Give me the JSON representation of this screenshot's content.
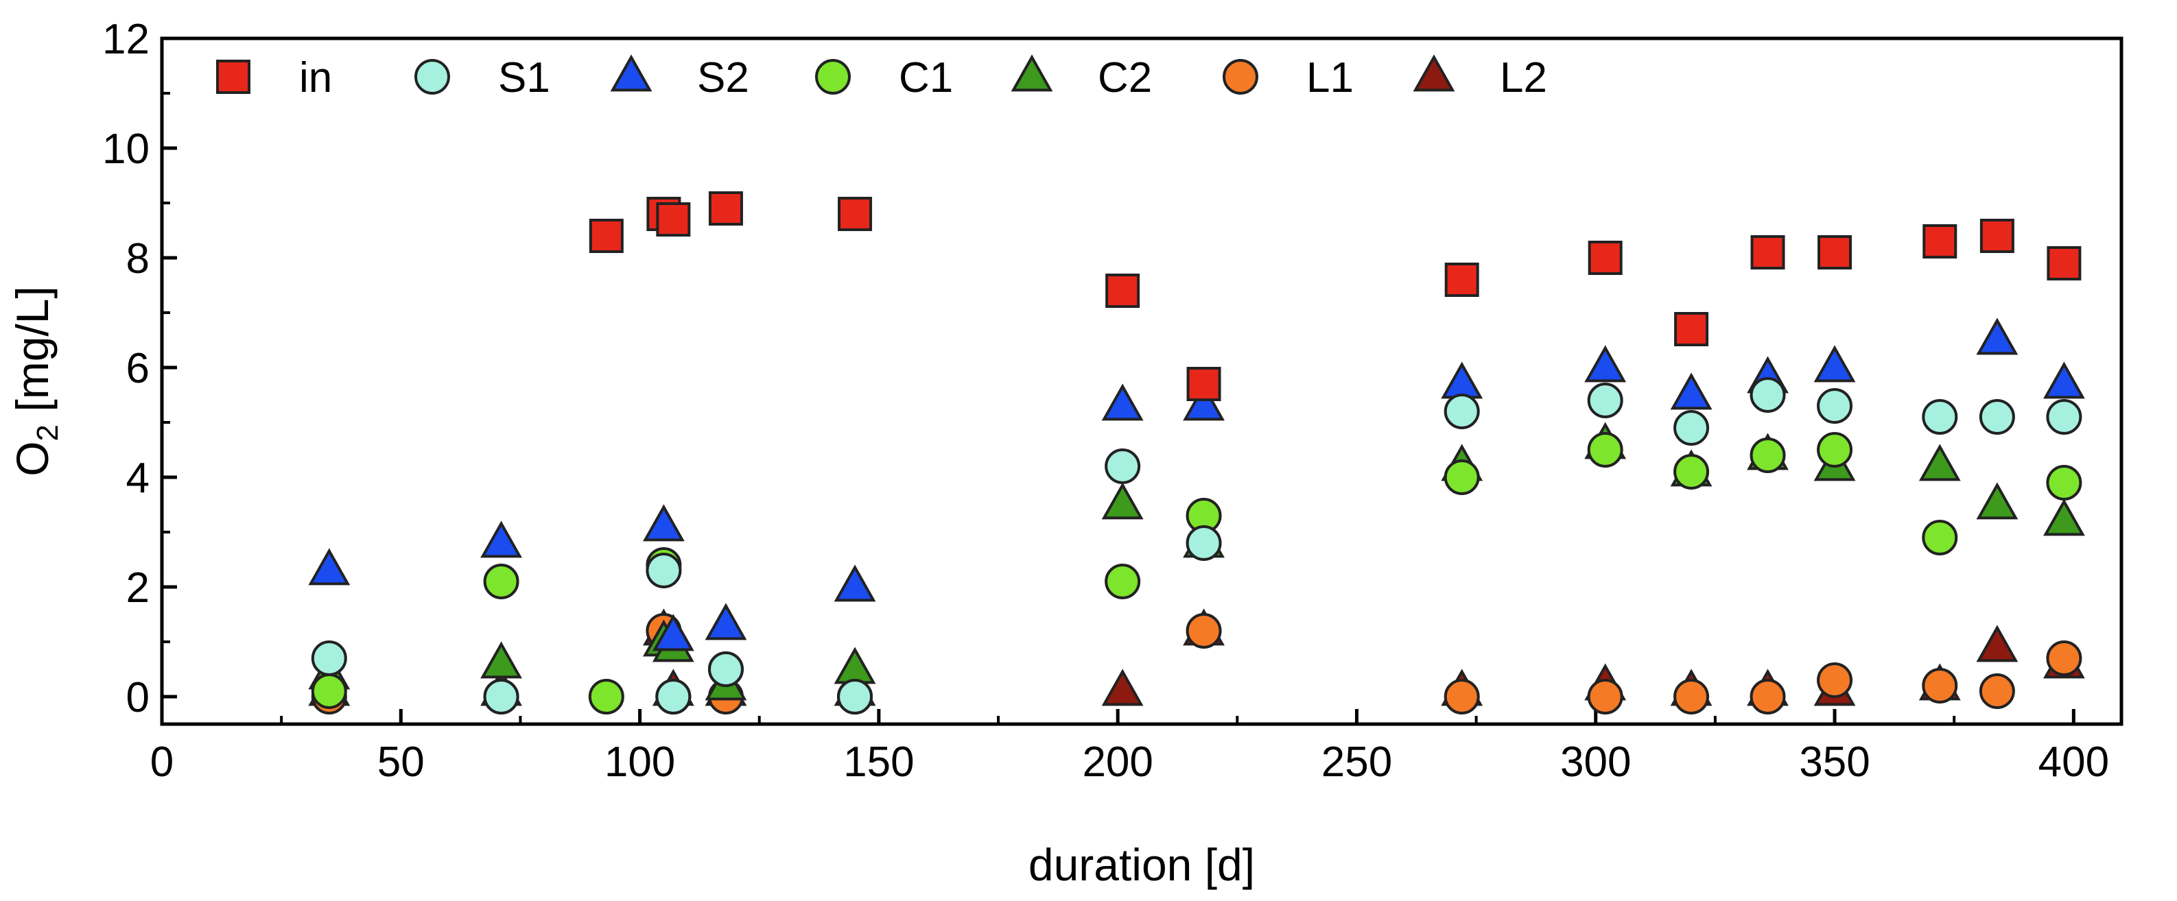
{
  "chart_data": {
    "type": "scatter",
    "title": "",
    "xlabel": "duration [d]",
    "ylabel_main": "O",
    "ylabel_sub": "2",
    "ylabel_unit": " [mg/L]",
    "xlim": [
      0,
      410
    ],
    "ylim": [
      -0.5,
      12
    ],
    "xticks": [
      0,
      50,
      100,
      150,
      200,
      250,
      300,
      350,
      400
    ],
    "yticks": [
      0,
      2,
      4,
      6,
      8,
      10,
      12
    ],
    "grid": false,
    "legend_position": "top",
    "series": [
      {
        "name": "in",
        "marker": "square",
        "color": "#e8271b",
        "points": [
          [
            93,
            8.4
          ],
          [
            105,
            8.8
          ],
          [
            107,
            8.7
          ],
          [
            118,
            8.9
          ],
          [
            145,
            8.8
          ],
          [
            201,
            7.4
          ],
          [
            218,
            5.7
          ],
          [
            272,
            7.6
          ],
          [
            302,
            8.0
          ],
          [
            320,
            6.7
          ],
          [
            336,
            8.1
          ],
          [
            350,
            8.1
          ],
          [
            372,
            8.3
          ],
          [
            384,
            8.4
          ],
          [
            398,
            7.9
          ]
        ]
      },
      {
        "name": "S1",
        "marker": "circle",
        "color": "#a6f0e0",
        "points": [
          [
            35,
            0.7
          ],
          [
            71,
            0.0
          ],
          [
            105,
            2.3
          ],
          [
            107,
            0.0
          ],
          [
            118,
            0.5
          ],
          [
            145,
            0.0
          ],
          [
            201,
            4.2
          ],
          [
            218,
            2.8
          ],
          [
            272,
            5.2
          ],
          [
            302,
            5.4
          ],
          [
            320,
            4.9
          ],
          [
            336,
            5.5
          ],
          [
            350,
            5.3
          ],
          [
            372,
            5.1
          ],
          [
            384,
            5.1
          ],
          [
            398,
            5.1
          ]
        ]
      },
      {
        "name": "S2",
        "marker": "triangle",
        "color": "#1a4cf0",
        "points": [
          [
            35,
            2.3
          ],
          [
            71,
            2.8
          ],
          [
            105,
            3.1
          ],
          [
            107,
            1.1
          ],
          [
            118,
            1.3
          ],
          [
            145,
            2.0
          ],
          [
            201,
            5.3
          ],
          [
            218,
            5.3
          ],
          [
            272,
            5.7
          ],
          [
            302,
            6.0
          ],
          [
            320,
            5.5
          ],
          [
            336,
            5.8
          ],
          [
            350,
            6.0
          ],
          [
            384,
            6.5
          ],
          [
            398,
            5.7
          ]
        ]
      },
      {
        "name": "C1",
        "marker": "circle",
        "color": "#7de52b",
        "points": [
          [
            35,
            0.1
          ],
          [
            71,
            2.1
          ],
          [
            93,
            0.0
          ],
          [
            105,
            2.4
          ],
          [
            107,
            0.0
          ],
          [
            118,
            0.5
          ],
          [
            145,
            0.0
          ],
          [
            201,
            2.1
          ],
          [
            218,
            3.3
          ],
          [
            272,
            4.0
          ],
          [
            302,
            4.5
          ],
          [
            320,
            4.1
          ],
          [
            336,
            4.4
          ],
          [
            350,
            4.5
          ],
          [
            372,
            2.9
          ],
          [
            398,
            3.9
          ]
        ]
      },
      {
        "name": "C2",
        "marker": "triangle",
        "color": "#3d9a1c",
        "points": [
          [
            35,
            0.4
          ],
          [
            71,
            0.6
          ],
          [
            105,
            1.0
          ],
          [
            107,
            0.9
          ],
          [
            118,
            0.2
          ],
          [
            145,
            0.5
          ],
          [
            201,
            3.5
          ],
          [
            218,
            2.8
          ],
          [
            272,
            4.2
          ],
          [
            302,
            4.6
          ],
          [
            320,
            4.1
          ],
          [
            336,
            4.4
          ],
          [
            350,
            4.2
          ],
          [
            372,
            4.2
          ],
          [
            384,
            3.5
          ],
          [
            398,
            3.2
          ]
        ]
      },
      {
        "name": "L1",
        "marker": "circle",
        "color": "#f57a26",
        "points": [
          [
            35,
            0.0
          ],
          [
            71,
            0.0
          ],
          [
            105,
            1.2
          ],
          [
            107,
            0.0
          ],
          [
            118,
            0.0
          ],
          [
            145,
            0.0
          ],
          [
            218,
            1.2
          ],
          [
            272,
            0.0
          ],
          [
            302,
            0.0
          ],
          [
            320,
            0.0
          ],
          [
            336,
            0.0
          ],
          [
            350,
            0.3
          ],
          [
            372,
            0.2
          ],
          [
            384,
            0.1
          ],
          [
            398,
            0.7
          ]
        ]
      },
      {
        "name": "L2",
        "marker": "triangle",
        "color": "#8c1a10",
        "points": [
          [
            35,
            0.1
          ],
          [
            71,
            0.1
          ],
          [
            105,
            1.2
          ],
          [
            107,
            0.1
          ],
          [
            118,
            0.1
          ],
          [
            145,
            0.1
          ],
          [
            201,
            0.1
          ],
          [
            218,
            1.2
          ],
          [
            272,
            0.1
          ],
          [
            302,
            0.2
          ],
          [
            320,
            0.1
          ],
          [
            336,
            0.1
          ],
          [
            350,
            0.1
          ],
          [
            372,
            0.2
          ],
          [
            384,
            0.9
          ],
          [
            398,
            0.6
          ]
        ]
      }
    ]
  }
}
